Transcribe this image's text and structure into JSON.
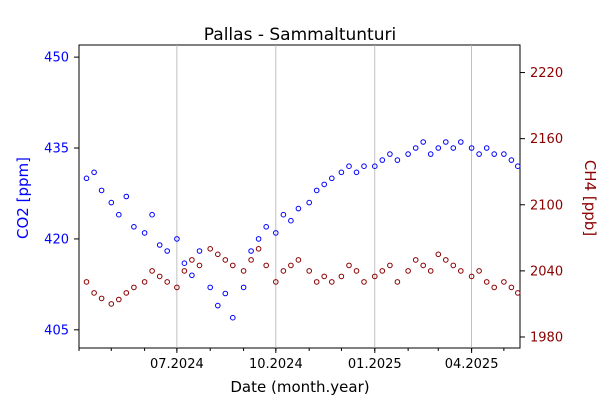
{
  "chart_data": {
    "type": "scatter",
    "title": "Pallas - Sammaltunturi",
    "xlabel": "Date (month.year)",
    "ylabel_left": "CO2 [ppm]",
    "ylabel_right": "CH4 [ppb]",
    "x_ticks": [
      "07.2024",
      "10.2024",
      "01.2025",
      "04.2025"
    ],
    "x_range": [
      "2024-04-01",
      "2025-05-16"
    ],
    "y_left": {
      "range": [
        402,
        452
      ],
      "ticks": [
        405,
        420,
        435,
        450
      ],
      "color": "#0000ff"
    },
    "y_right": {
      "range": [
        1970,
        2245
      ],
      "ticks": [
        1980,
        2040,
        2100,
        2160,
        2220
      ],
      "color": "#8b0000"
    },
    "grid": "x-only",
    "series": [
      {
        "axis": "left",
        "color": "#0000ff",
        "marker": "open-circle",
        "points": [
          [
            "2024-04-08",
            430
          ],
          [
            "2024-04-15",
            431
          ],
          [
            "2024-04-22",
            428
          ],
          [
            "2024-05-01",
            426
          ],
          [
            "2024-05-08",
            424
          ],
          [
            "2024-05-15",
            427
          ],
          [
            "2024-05-22",
            422
          ],
          [
            "2024-06-01",
            421
          ],
          [
            "2024-06-08",
            424
          ],
          [
            "2024-06-15",
            419
          ],
          [
            "2024-06-22",
            418
          ],
          [
            "2024-07-01",
            420
          ],
          [
            "2024-07-08",
            416
          ],
          [
            "2024-07-15",
            414
          ],
          [
            "2024-07-22",
            418
          ],
          [
            "2024-08-01",
            412
          ],
          [
            "2024-08-08",
            409
          ],
          [
            "2024-08-15",
            411
          ],
          [
            "2024-08-22",
            407
          ],
          [
            "2024-09-01",
            412
          ],
          [
            "2024-09-08",
            418
          ],
          [
            "2024-09-15",
            420
          ],
          [
            "2024-09-22",
            422
          ],
          [
            "2024-10-01",
            421
          ],
          [
            "2024-10-08",
            424
          ],
          [
            "2024-10-15",
            423
          ],
          [
            "2024-10-22",
            425
          ],
          [
            "2024-11-01",
            426
          ],
          [
            "2024-11-08",
            428
          ],
          [
            "2024-11-15",
            429
          ],
          [
            "2024-11-22",
            430
          ],
          [
            "2024-12-01",
            431
          ],
          [
            "2024-12-08",
            432
          ],
          [
            "2024-12-15",
            431
          ],
          [
            "2024-12-22",
            432
          ],
          [
            "2025-01-01",
            432
          ],
          [
            "2025-01-08",
            433
          ],
          [
            "2025-01-15",
            434
          ],
          [
            "2025-01-22",
            433
          ],
          [
            "2025-02-01",
            434
          ],
          [
            "2025-02-08",
            435
          ],
          [
            "2025-02-15",
            436
          ],
          [
            "2025-02-22",
            434
          ],
          [
            "2025-03-01",
            435
          ],
          [
            "2025-03-08",
            436
          ],
          [
            "2025-03-15",
            435
          ],
          [
            "2025-03-22",
            436
          ],
          [
            "2025-04-01",
            435
          ],
          [
            "2025-04-08",
            434
          ],
          [
            "2025-04-15",
            435
          ],
          [
            "2025-04-22",
            434
          ],
          [
            "2025-05-01",
            434
          ],
          [
            "2025-05-08",
            433
          ],
          [
            "2025-05-14",
            432
          ]
        ]
      },
      {
        "axis": "right",
        "color": "#8b0000",
        "marker": "open-circle",
        "points": [
          [
            "2024-04-08",
            2030
          ],
          [
            "2024-04-15",
            2020
          ],
          [
            "2024-04-22",
            2015
          ],
          [
            "2024-05-01",
            2010
          ],
          [
            "2024-05-08",
            2014
          ],
          [
            "2024-05-15",
            2020
          ],
          [
            "2024-05-22",
            2025
          ],
          [
            "2024-06-01",
            2030
          ],
          [
            "2024-06-08",
            2040
          ],
          [
            "2024-06-15",
            2035
          ],
          [
            "2024-06-22",
            2030
          ],
          [
            "2024-07-01",
            2025
          ],
          [
            "2024-07-08",
            2040
          ],
          [
            "2024-07-15",
            2050
          ],
          [
            "2024-07-22",
            2045
          ],
          [
            "2024-08-01",
            2060
          ],
          [
            "2024-08-08",
            2055
          ],
          [
            "2024-08-15",
            2050
          ],
          [
            "2024-08-22",
            2045
          ],
          [
            "2024-09-01",
            2040
          ],
          [
            "2024-09-08",
            2050
          ],
          [
            "2024-09-15",
            2060
          ],
          [
            "2024-09-22",
            2045
          ],
          [
            "2024-10-01",
            2030
          ],
          [
            "2024-10-08",
            2040
          ],
          [
            "2024-10-15",
            2045
          ],
          [
            "2024-10-22",
            2050
          ],
          [
            "2024-11-01",
            2040
          ],
          [
            "2024-11-08",
            2030
          ],
          [
            "2024-11-15",
            2035
          ],
          [
            "2024-11-22",
            2030
          ],
          [
            "2024-12-01",
            2035
          ],
          [
            "2024-12-08",
            2045
          ],
          [
            "2024-12-15",
            2040
          ],
          [
            "2024-12-22",
            2030
          ],
          [
            "2025-01-01",
            2035
          ],
          [
            "2025-01-08",
            2040
          ],
          [
            "2025-01-15",
            2045
          ],
          [
            "2025-01-22",
            2030
          ],
          [
            "2025-02-01",
            2040
          ],
          [
            "2025-02-08",
            2050
          ],
          [
            "2025-02-15",
            2045
          ],
          [
            "2025-02-22",
            2040
          ],
          [
            "2025-03-01",
            2055
          ],
          [
            "2025-03-08",
            2050
          ],
          [
            "2025-03-15",
            2045
          ],
          [
            "2025-03-22",
            2040
          ],
          [
            "2025-04-01",
            2035
          ],
          [
            "2025-04-08",
            2040
          ],
          [
            "2025-04-15",
            2030
          ],
          [
            "2025-04-22",
            2025
          ],
          [
            "2025-05-01",
            2030
          ],
          [
            "2025-05-08",
            2025
          ],
          [
            "2025-05-14",
            2020
          ]
        ]
      }
    ]
  }
}
